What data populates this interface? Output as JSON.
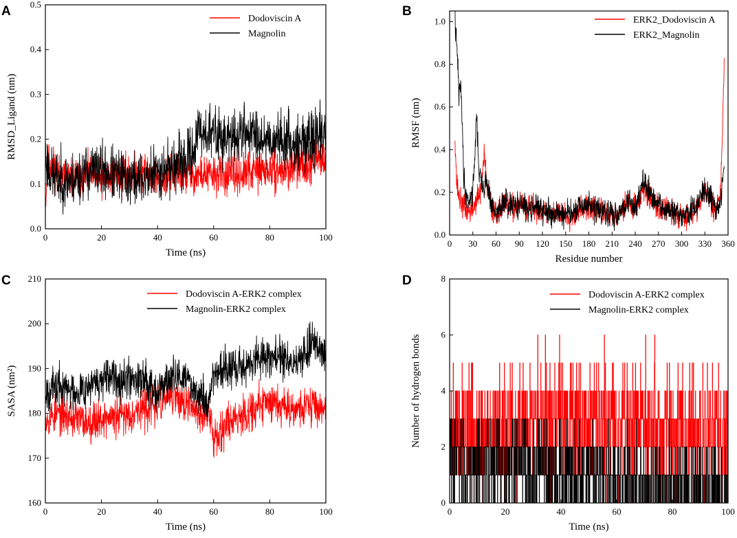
{
  "chart_data": [
    {
      "panel": "A",
      "type": "line",
      "xlabel": "Time (ns)",
      "ylabel": "RMSD_Ligand (nm)",
      "xlim": [
        0,
        100
      ],
      "ylim": [
        0.0,
        0.5
      ],
      "xticks": [
        0,
        20,
        40,
        60,
        80,
        100
      ],
      "yticks": [
        0.0,
        0.1,
        0.2,
        0.3,
        0.4,
        0.5
      ],
      "ytick_decimals": 1,
      "legend": "top-right",
      "series": [
        {
          "name": "Dodoviscin A",
          "color": "#ff0000",
          "x": [
            0,
            1,
            3,
            5,
            10,
            15,
            20,
            25,
            30,
            35,
            40,
            45,
            50,
            55,
            60,
            65,
            70,
            75,
            80,
            85,
            90,
            95,
            100
          ],
          "y": [
            0.06,
            0.15,
            0.14,
            0.12,
            0.11,
            0.12,
            0.11,
            0.12,
            0.12,
            0.13,
            0.11,
            0.12,
            0.12,
            0.12,
            0.12,
            0.12,
            0.12,
            0.13,
            0.13,
            0.13,
            0.14,
            0.15,
            0.16
          ],
          "noise": 0.022,
          "seed": 11
        },
        {
          "name": "Magnolin",
          "color": "#000000",
          "x": [
            0,
            2,
            5,
            10,
            15,
            20,
            25,
            30,
            35,
            40,
            45,
            50,
            53,
            55,
            60,
            65,
            68,
            70,
            75,
            80,
            85,
            90,
            95,
            100
          ],
          "y": [
            0.16,
            0.12,
            0.11,
            0.11,
            0.13,
            0.13,
            0.12,
            0.11,
            0.11,
            0.13,
            0.14,
            0.15,
            0.18,
            0.22,
            0.21,
            0.2,
            0.2,
            0.22,
            0.21,
            0.2,
            0.2,
            0.19,
            0.2,
            0.22
          ],
          "noise": 0.03,
          "seed": 23
        }
      ]
    },
    {
      "panel": "B",
      "type": "line",
      "xlabel": "Residue number",
      "ylabel": "RMSF (nm)",
      "xlim": [
        0,
        360
      ],
      "ylim": [
        0.0,
        1.05
      ],
      "xticks": [
        0,
        30,
        60,
        90,
        120,
        150,
        180,
        210,
        240,
        270,
        300,
        330,
        360
      ],
      "yticks": [
        0.0,
        0.2,
        0.4,
        0.6,
        0.8,
        1.0
      ],
      "ytick_decimals": 1,
      "legend": "top-right",
      "series": [
        {
          "name": "ERK2_Dodoviscin A",
          "color": "#ff0000",
          "x": [
            7,
            9,
            12,
            15,
            20,
            25,
            30,
            35,
            40,
            45,
            48,
            55,
            60,
            70,
            80,
            90,
            100,
            110,
            120,
            130,
            140,
            150,
            160,
            170,
            180,
            190,
            200,
            210,
            220,
            230,
            240,
            250,
            260,
            270,
            280,
            290,
            300,
            310,
            320,
            330,
            340,
            345,
            350,
            353,
            355
          ],
          "y": [
            0.47,
            0.25,
            0.18,
            0.15,
            0.12,
            0.11,
            0.12,
            0.17,
            0.2,
            0.38,
            0.22,
            0.12,
            0.1,
            0.15,
            0.12,
            0.14,
            0.12,
            0.13,
            0.11,
            0.1,
            0.1,
            0.09,
            0.1,
            0.12,
            0.13,
            0.12,
            0.1,
            0.09,
            0.11,
            0.15,
            0.12,
            0.22,
            0.17,
            0.13,
            0.12,
            0.1,
            0.09,
            0.1,
            0.13,
            0.2,
            0.15,
            0.12,
            0.2,
            0.5,
            0.83
          ],
          "noise": 0.03,
          "seed": 37
        },
        {
          "name": "ERK2_Magnolin",
          "color": "#000000",
          "x": [
            7,
            8,
            10,
            12,
            15,
            18,
            20,
            25,
            30,
            35,
            38,
            42,
            48,
            55,
            60,
            70,
            80,
            90,
            100,
            110,
            120,
            130,
            140,
            150,
            160,
            170,
            180,
            190,
            200,
            210,
            220,
            230,
            240,
            250,
            260,
            270,
            280,
            290,
            300,
            310,
            320,
            330,
            340,
            345,
            350,
            353,
            355
          ],
          "y": [
            1.02,
            0.93,
            0.85,
            0.66,
            0.7,
            0.3,
            0.2,
            0.16,
            0.2,
            0.56,
            0.3,
            0.22,
            0.25,
            0.13,
            0.1,
            0.15,
            0.13,
            0.15,
            0.12,
            0.14,
            0.11,
            0.1,
            0.1,
            0.1,
            0.1,
            0.13,
            0.14,
            0.12,
            0.1,
            0.09,
            0.11,
            0.16,
            0.13,
            0.25,
            0.18,
            0.14,
            0.12,
            0.1,
            0.09,
            0.1,
            0.14,
            0.22,
            0.17,
            0.12,
            0.15,
            0.25,
            0.34
          ],
          "noise": 0.03,
          "seed": 41
        }
      ]
    },
    {
      "panel": "C",
      "type": "line",
      "xlabel": "Time (ns)",
      "ylabel": "SASA (nm²)",
      "xlim": [
        0,
        100
      ],
      "ylim": [
        160,
        210
      ],
      "xticks": [
        0,
        20,
        40,
        60,
        80,
        100
      ],
      "yticks": [
        160,
        170,
        180,
        190,
        200,
        210
      ],
      "ytick_decimals": 0,
      "legend": "top-right",
      "series": [
        {
          "name": "Dodoviscin A-ERK2 complex",
          "color": "#ff0000",
          "x": [
            0,
            5,
            10,
            15,
            20,
            25,
            30,
            35,
            40,
            45,
            50,
            55,
            58,
            60,
            62,
            65,
            70,
            75,
            80,
            85,
            90,
            95,
            100
          ],
          "y": [
            179,
            180,
            179,
            178,
            179,
            179,
            180,
            181,
            182,
            184,
            182,
            180,
            180,
            175,
            176,
            178,
            180,
            181,
            183,
            182,
            181,
            182,
            181
          ],
          "noise": 2.2,
          "seed": 53
        },
        {
          "name": "Magnolin-ERK2 complex",
          "color": "#000000",
          "x": [
            0,
            5,
            10,
            15,
            20,
            25,
            30,
            35,
            40,
            45,
            50,
            55,
            58,
            60,
            65,
            70,
            75,
            80,
            85,
            90,
            95,
            100
          ],
          "y": [
            185,
            186,
            185,
            186,
            187,
            188,
            188,
            188,
            185,
            188,
            188,
            184,
            182,
            189,
            190,
            190,
            192,
            193,
            192,
            191,
            196,
            193
          ],
          "noise": 2.2,
          "seed": 67
        }
      ]
    },
    {
      "panel": "D",
      "type": "line",
      "xlabel": "Time (ns)",
      "ylabel": "Number of hydrogen bonds",
      "xlim": [
        0,
        100
      ],
      "ylim": [
        0,
        8
      ],
      "xticks": [
        0,
        20,
        40,
        60,
        80,
        100
      ],
      "yticks": [
        0,
        2,
        4,
        6,
        8
      ],
      "ytick_decimals": 0,
      "legend": "top-right",
      "series": [
        {
          "name": "Dodoviscin A-ERK2 complex",
          "color": "#ff0000",
          "x": [
            0,
            10,
            20,
            25,
            30,
            40,
            50,
            60,
            70,
            80,
            90,
            100
          ],
          "y": [
            3,
            2.5,
            2.5,
            2.8,
            3,
            3,
            3,
            3,
            3,
            2.6,
            2.6,
            2.6
          ],
          "noise": 1.1,
          "step": true,
          "seed": 79
        },
        {
          "name": "Magnolin-ERK2 complex",
          "color": "#000000",
          "x": [
            0,
            10,
            20,
            30,
            40,
            50,
            55,
            60,
            70,
            80,
            90,
            100
          ],
          "y": [
            1.5,
            1.5,
            1.4,
            1.2,
            1.1,
            1.0,
            1.0,
            0.7,
            0.6,
            0.5,
            0.4,
            0.4
          ],
          "noise": 0.9,
          "step": true,
          "seed": 83
        }
      ]
    }
  ]
}
